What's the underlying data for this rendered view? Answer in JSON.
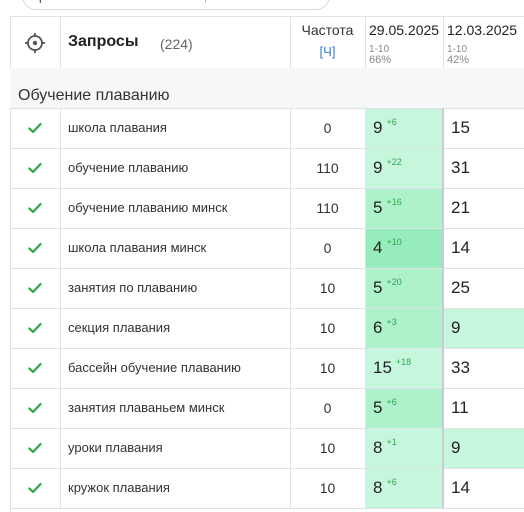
{
  "header": {
    "title": "Запросы",
    "count": "(224)",
    "frequency_label": "Частота",
    "frequency_unit": "[Ч]",
    "dates": [
      {
        "date": "29.05.2025",
        "range": "1-10",
        "percent": "66%"
      },
      {
        "date": "12.03.2025",
        "range": "1-10",
        "percent": "42%"
      }
    ]
  },
  "group": {
    "title": "Обучение плаванию"
  },
  "colors": {
    "light_green": "#c6f7dc",
    "mid_green": "#aef2cc",
    "strong_green": "#96ecbc",
    "check_green": "#2aa84a",
    "delta_green": "#2aa84a"
  },
  "rows": [
    {
      "query": "школа плавания",
      "freq": "0",
      "pos1": "9",
      "delta": "+6",
      "pos2": "15",
      "pos1_color": "light_green",
      "pos2_color": "white"
    },
    {
      "query": "обучение плаванию",
      "freq": "110",
      "pos1": "9",
      "delta": "+22",
      "pos2": "31",
      "pos1_color": "light_green",
      "pos2_color": "white"
    },
    {
      "query": "обучение плаванию минск",
      "freq": "110",
      "pos1": "5",
      "delta": "+16",
      "pos2": "21",
      "pos1_color": "mid_green",
      "pos2_color": "white"
    },
    {
      "query": "школа плавания минск",
      "freq": "0",
      "pos1": "4",
      "delta": "+10",
      "pos2": "14",
      "pos1_color": "strong_green",
      "pos2_color": "white"
    },
    {
      "query": "занятия по плаванию",
      "freq": "10",
      "pos1": "5",
      "delta": "+20",
      "pos2": "25",
      "pos1_color": "mid_green",
      "pos2_color": "white"
    },
    {
      "query": "секция плавания",
      "freq": "10",
      "pos1": "6",
      "delta": "+3",
      "pos2": "9",
      "pos1_color": "mid_green",
      "pos2_color": "light_green"
    },
    {
      "query": "бассейн обучение плаванию",
      "freq": "10",
      "pos1": "15",
      "delta": "+18",
      "pos2": "33",
      "pos1_color": "light_green",
      "pos2_color": "white"
    },
    {
      "query": "занятия плаваньем минск",
      "freq": "0",
      "pos1": "5",
      "delta": "+6",
      "pos2": "11",
      "pos1_color": "mid_green",
      "pos2_color": "white"
    },
    {
      "query": "уроки плавания",
      "freq": "10",
      "pos1": "8",
      "delta": "+1",
      "pos2": "9",
      "pos1_color": "light_green",
      "pos2_color": "light_green"
    },
    {
      "query": "кружок плавания",
      "freq": "10",
      "pos1": "8",
      "delta": "+6",
      "pos2": "14",
      "pos1_color": "light_green",
      "pos2_color": "white"
    }
  ]
}
